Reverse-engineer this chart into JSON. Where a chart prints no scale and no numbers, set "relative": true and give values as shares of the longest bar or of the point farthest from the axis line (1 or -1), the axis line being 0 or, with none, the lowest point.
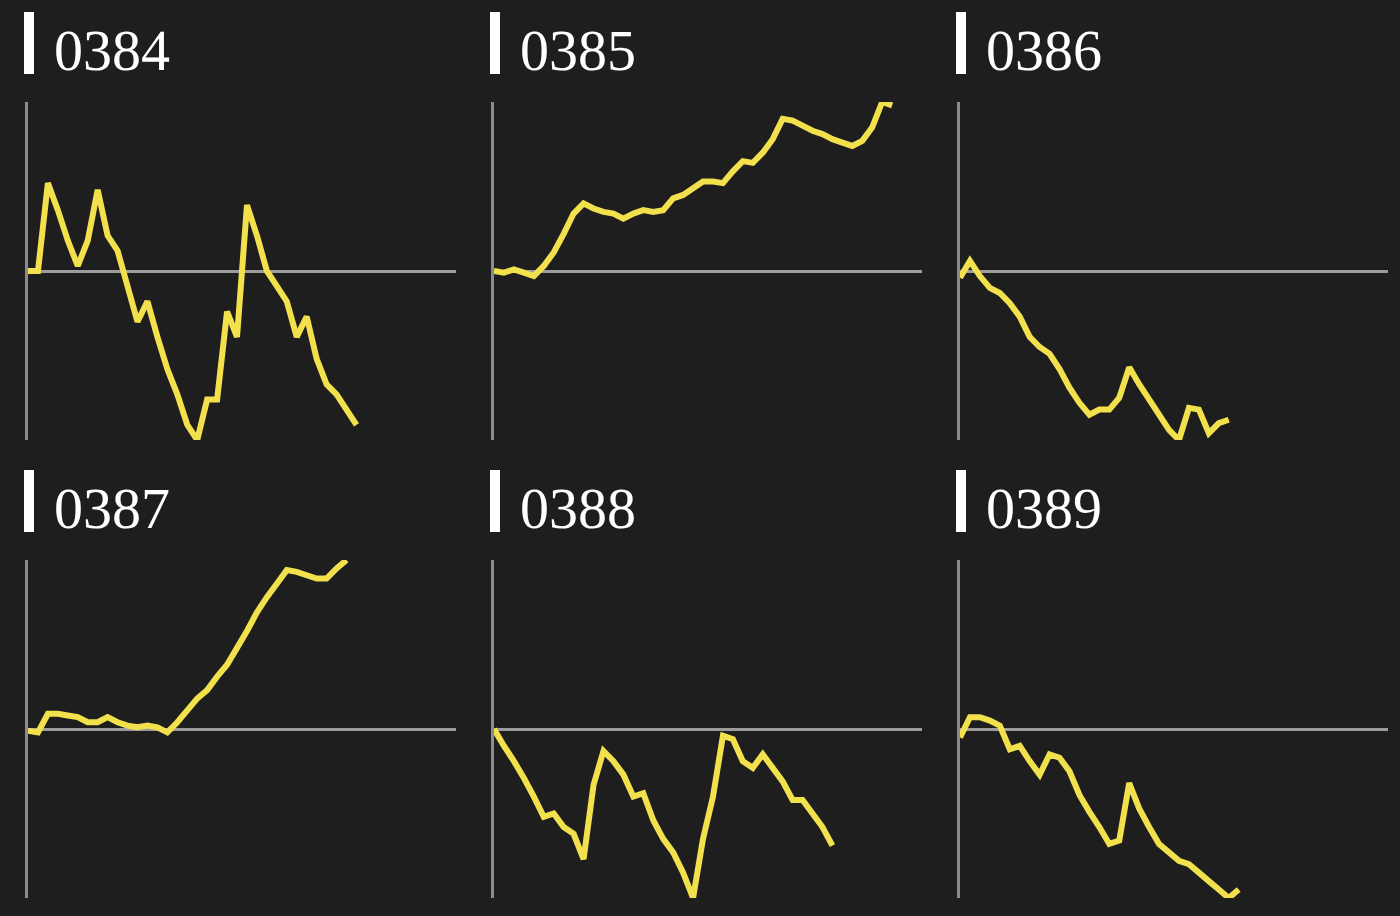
{
  "chart_data": [
    {
      "type": "line",
      "title": "0384",
      "relative": true,
      "grid": false,
      "categories": [
        null,
        null,
        null,
        null,
        null,
        null,
        null,
        null,
        null,
        null,
        null,
        null,
        null,
        null,
        null,
        null,
        null,
        null,
        null,
        null,
        null,
        null,
        null,
        null,
        null,
        null,
        null,
        null,
        null,
        null,
        null,
        null,
        null,
        null,
        null,
        null,
        null,
        null,
        null,
        null,
        null,
        null,
        null,
        null
      ],
      "series": [
        {
          "color": "#f2e04c",
          "values": [
            0,
            0,
            0.52,
            0.36,
            0.18,
            0.03,
            0.18,
            0.48,
            0.21,
            0.12,
            -0.09,
            -0.3,
            -0.18,
            -0.39,
            -0.58,
            -0.73,
            -0.91,
            -1,
            -0.76,
            -0.76,
            -0.24,
            -0.39,
            0.39,
            0.21,
            0,
            -0.09,
            -0.18,
            -0.39,
            -0.27,
            -0.52,
            -0.67,
            -0.73,
            -0.82,
            -0.91,
            null,
            null,
            null,
            null,
            null,
            null,
            null,
            null,
            null,
            null
          ]
        }
      ]
    },
    {
      "type": "line",
      "title": "0385",
      "relative": true,
      "grid": false,
      "categories": [
        null,
        null,
        null,
        null,
        null,
        null,
        null,
        null,
        null,
        null,
        null,
        null,
        null,
        null,
        null,
        null,
        null,
        null,
        null,
        null,
        null,
        null,
        null,
        null,
        null,
        null,
        null,
        null,
        null,
        null,
        null,
        null,
        null,
        null,
        null,
        null,
        null,
        null,
        null,
        null,
        null,
        null,
        null,
        null
      ],
      "series": [
        {
          "color": "#f2e04c",
          "values": [
            0,
            -0.01,
            0.01,
            -0.01,
            -0.03,
            0.03,
            0.11,
            0.22,
            0.34,
            0.4,
            0.37,
            0.35,
            0.34,
            0.31,
            0.34,
            0.36,
            0.35,
            0.36,
            0.43,
            0.45,
            0.49,
            0.53,
            0.53,
            0.52,
            0.59,
            0.65,
            0.64,
            0.7,
            0.78,
            0.9,
            0.89,
            0.86,
            0.83,
            0.81,
            0.78,
            0.76,
            0.74,
            0.77,
            0.85,
            1,
            0.98,
            null,
            null,
            null
          ]
        }
      ]
    },
    {
      "type": "line",
      "title": "0386",
      "relative": true,
      "grid": false,
      "categories": [
        null,
        null,
        null,
        null,
        null,
        null,
        null,
        null,
        null,
        null,
        null,
        null,
        null,
        null,
        null,
        null,
        null,
        null,
        null,
        null,
        null,
        null,
        null,
        null,
        null,
        null,
        null,
        null,
        null,
        null,
        null,
        null,
        null,
        null,
        null,
        null,
        null,
        null,
        null,
        null,
        null,
        null,
        null,
        null
      ],
      "series": [
        {
          "color": "#f2e04c",
          "values": [
            -0.04,
            0.06,
            -0.03,
            -0.1,
            -0.13,
            -0.19,
            -0.27,
            -0.39,
            -0.45,
            -0.49,
            -0.58,
            -0.69,
            -0.78,
            -0.85,
            -0.82,
            -0.82,
            -0.75,
            -0.57,
            -0.67,
            -0.76,
            -0.85,
            -0.94,
            -1,
            -0.81,
            -0.82,
            -0.96,
            -0.9,
            -0.88,
            null,
            null,
            null,
            null,
            null,
            null,
            null,
            null,
            null,
            null,
            null,
            null,
            null,
            null,
            null,
            null
          ]
        }
      ]
    },
    {
      "type": "line",
      "title": "0387",
      "relative": true,
      "grid": false,
      "categories": [
        null,
        null,
        null,
        null,
        null,
        null,
        null,
        null,
        null,
        null,
        null,
        null,
        null,
        null,
        null,
        null,
        null,
        null,
        null,
        null,
        null,
        null,
        null,
        null,
        null,
        null,
        null,
        null,
        null,
        null,
        null,
        null,
        null,
        null,
        null,
        null,
        null,
        null,
        null,
        null,
        null,
        null,
        null,
        null
      ],
      "series": [
        {
          "color": "#f2e04c",
          "values": [
            -0.01,
            -0.02,
            0.09,
            0.09,
            0.08,
            0.07,
            0.04,
            0.04,
            0.07,
            0.04,
            0.02,
            0.01,
            0.02,
            0.01,
            -0.02,
            0.04,
            0.11,
            0.18,
            0.23,
            0.31,
            0.38,
            0.48,
            0.58,
            0.69,
            0.78,
            0.86,
            0.94,
            0.93,
            0.91,
            0.89,
            0.89,
            0.95,
            1,
            null,
            null,
            null,
            null,
            null,
            null,
            null,
            null,
            null,
            null,
            null
          ]
        }
      ]
    },
    {
      "type": "line",
      "title": "0388",
      "relative": true,
      "grid": false,
      "categories": [
        null,
        null,
        null,
        null,
        null,
        null,
        null,
        null,
        null,
        null,
        null,
        null,
        null,
        null,
        null,
        null,
        null,
        null,
        null,
        null,
        null,
        null,
        null,
        null,
        null,
        null,
        null,
        null,
        null,
        null,
        null,
        null,
        null,
        null,
        null,
        null,
        null,
        null,
        null,
        null,
        null,
        null,
        null,
        null
      ],
      "series": [
        {
          "color": "#f2e04c",
          "values": [
            0,
            -0.1,
            -0.19,
            -0.29,
            -0.4,
            -0.52,
            -0.5,
            -0.58,
            -0.62,
            -0.77,
            -0.33,
            -0.13,
            -0.19,
            -0.27,
            -0.4,
            -0.38,
            -0.54,
            -0.65,
            -0.73,
            -0.85,
            -1,
            -0.65,
            -0.4,
            -0.04,
            -0.06,
            -0.19,
            -0.23,
            -0.15,
            -0.23,
            -0.31,
            -0.42,
            -0.42,
            -0.5,
            -0.58,
            -0.69,
            null,
            null,
            null,
            null,
            null,
            null,
            null,
            null,
            null
          ]
        }
      ]
    },
    {
      "type": "line",
      "title": "0389",
      "relative": true,
      "grid": false,
      "categories": [
        null,
        null,
        null,
        null,
        null,
        null,
        null,
        null,
        null,
        null,
        null,
        null,
        null,
        null,
        null,
        null,
        null,
        null,
        null,
        null,
        null,
        null,
        null,
        null,
        null,
        null,
        null,
        null,
        null,
        null,
        null,
        null,
        null,
        null,
        null,
        null,
        null,
        null,
        null,
        null,
        null,
        null,
        null,
        null
      ],
      "series": [
        {
          "color": "#f2e04c",
          "values": [
            -0.05,
            0.07,
            0.07,
            0.05,
            0.02,
            -0.12,
            -0.1,
            -0.19,
            -0.27,
            -0.15,
            -0.17,
            -0.25,
            -0.39,
            -0.49,
            -0.58,
            -0.68,
            -0.66,
            -0.32,
            -0.47,
            -0.58,
            -0.68,
            -0.73,
            -0.78,
            -0.8,
            -0.85,
            -0.9,
            -0.95,
            -1,
            -0.95,
            null,
            null,
            null,
            null,
            null,
            null,
            null,
            null,
            null,
            null,
            null,
            null,
            null,
            null,
            null
          ]
        }
      ]
    }
  ]
}
